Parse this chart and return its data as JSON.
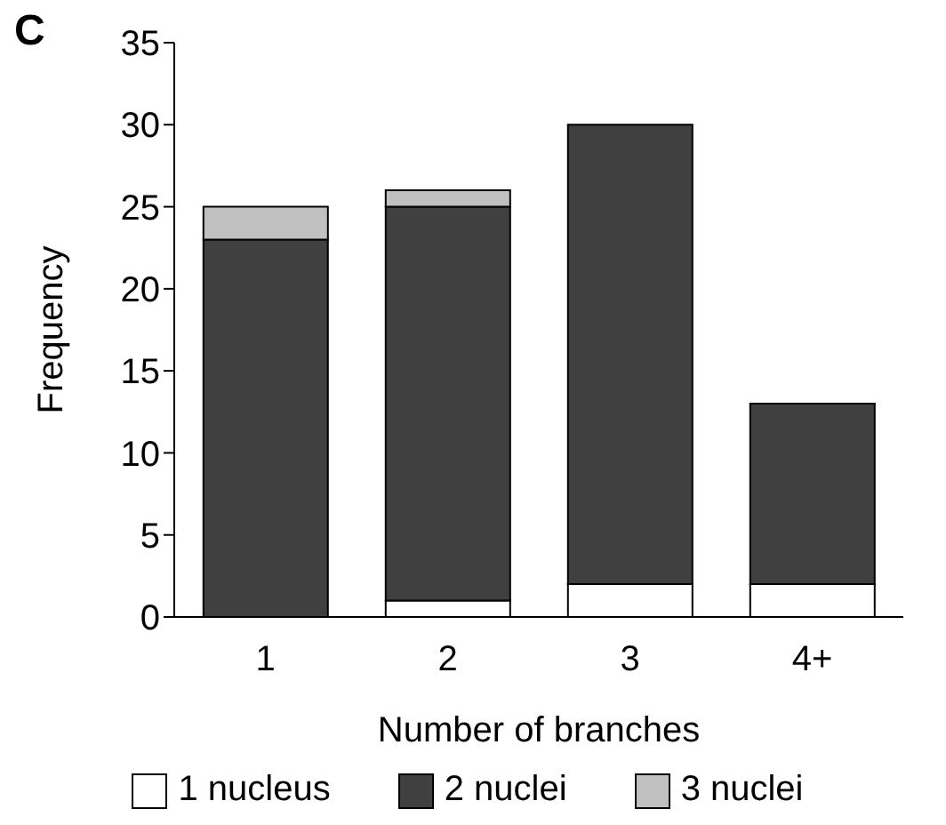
{
  "chart_data": {
    "type": "bar",
    "stacked": true,
    "xlabel": "Number of branches",
    "ylabel": "Frequency",
    "annotations": [
      "C"
    ],
    "categories": [
      "1",
      "2",
      "3",
      "4+"
    ],
    "series": [
      {
        "name": "1 nucleus",
        "color": "#ffffff",
        "values": [
          0,
          1,
          2,
          2
        ]
      },
      {
        "name": "2 nuclei",
        "color": "#404040",
        "values": [
          23,
          24,
          28,
          11
        ]
      },
      {
        "name": "3 nuclei",
        "color": "#c0c0c0",
        "values": [
          2,
          1,
          0,
          0
        ]
      }
    ],
    "ylim": [
      0,
      35
    ],
    "yticks": [
      0,
      5,
      10,
      15,
      20,
      25,
      30,
      35
    ],
    "grid": false,
    "legend": "bottom"
  }
}
